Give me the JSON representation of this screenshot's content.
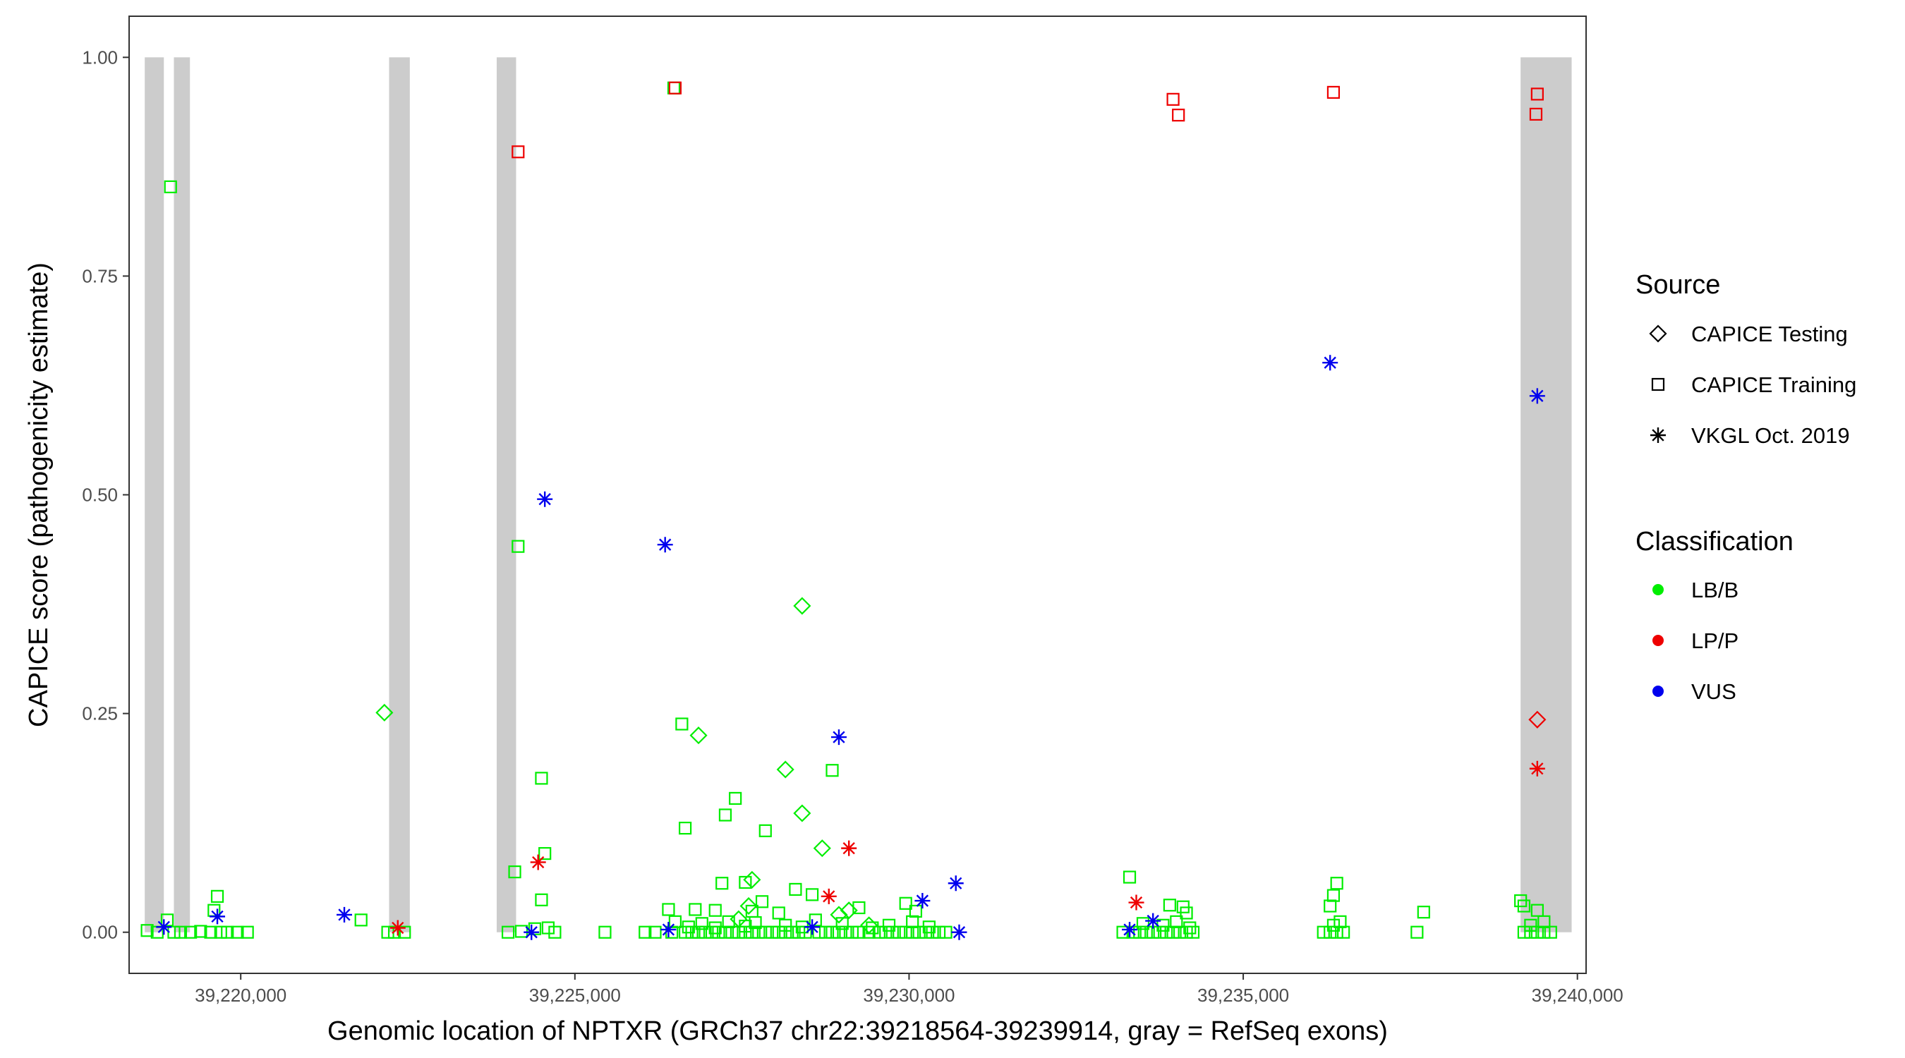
{
  "chart_data": {
    "type": "scatter",
    "xlabel": "Genomic location of NPTXR (GRCh37 chr22:39218564-39239914, gray = RefSeq exons)",
    "ylabel": "CAPICE score (pathogenicity estimate)",
    "xlim": [
      218330,
      240130
    ],
    "ylim": [
      -0.047,
      1.047
    ],
    "x_ticks": [
      220000,
      225000,
      230000,
      235000,
      240000
    ],
    "x_tick_labels": [
      "39,220,000",
      "39,225,000",
      "39,230,000",
      "39,235,000",
      "39,240,000"
    ],
    "y_ticks": [
      0,
      0.25,
      0.5,
      0.75,
      1.0
    ],
    "y_tick_labels": [
      "0.00",
      "0.25",
      "0.50",
      "0.75",
      "1.00"
    ],
    "grid": false,
    "x_value_offset": 39000000,
    "exons": [
      [
        218564,
        218850
      ],
      [
        219000,
        219240
      ],
      [
        222220,
        222530
      ],
      [
        223830,
        224120
      ],
      [
        239150,
        239914
      ]
    ],
    "colors": {
      "LB/B": "#00ee00",
      "LP/P": "#ee0000",
      "VUS": "#0000ee",
      "exon": "#cccccc",
      "frame": "#333333"
    },
    "legend": {
      "position": "right",
      "source_title": "Source",
      "source_items": [
        {
          "shape": "diamond",
          "label": "CAPICE Testing"
        },
        {
          "shape": "square",
          "label": "CAPICE Training"
        },
        {
          "shape": "asterisk",
          "label": "VKGL Oct. 2019"
        }
      ],
      "class_title": "Classification",
      "class_items": [
        {
          "cls": "LB/B",
          "label": "LB/B"
        },
        {
          "cls": "LP/P",
          "label": "LP/P"
        },
        {
          "cls": "VUS",
          "label": "VUS"
        }
      ]
    },
    "series": [
      {
        "source": "CAPICE Training",
        "classification": "LP/P",
        "points": [
          [
            226500,
            0.965
          ],
          [
            224150,
            0.892
          ],
          [
            233950,
            0.952
          ],
          [
            234030,
            0.934
          ],
          [
            236350,
            0.96
          ],
          [
            239400,
            0.958
          ],
          [
            239380,
            0.935
          ]
        ]
      },
      {
        "source": "CAPICE Testing",
        "classification": "LP/P",
        "points": [
          [
            239400,
            0.243
          ]
        ]
      },
      {
        "source": "VKGL Oct. 2019",
        "classification": "LP/P",
        "points": [
          [
            239400,
            0.187
          ],
          [
            224450,
            0.08
          ],
          [
            229100,
            0.096
          ],
          [
            228800,
            0.041
          ],
          [
            233400,
            0.034
          ],
          [
            222350,
            0.005
          ]
        ]
      },
      {
        "source": "VKGL Oct. 2019",
        "classification": "VUS",
        "points": [
          [
            236300,
            0.651
          ],
          [
            239400,
            0.613
          ],
          [
            224550,
            0.495
          ],
          [
            226350,
            0.443
          ],
          [
            228950,
            0.223
          ],
          [
            230700,
            0.056
          ],
          [
            230200,
            0.036
          ],
          [
            221550,
            0.02
          ],
          [
            219650,
            0.018
          ],
          [
            218850,
            0.006
          ],
          [
            224350,
            0.0
          ],
          [
            226400,
            0.003
          ],
          [
            228550,
            0.006
          ],
          [
            230750,
            0.0
          ],
          [
            233300,
            0.003
          ],
          [
            233650,
            0.013
          ]
        ]
      },
      {
        "source": "CAPICE Training",
        "classification": "LB/B",
        "points": [
          [
            226480,
            0.965
          ],
          [
            218950,
            0.852
          ],
          [
            224150,
            0.441
          ],
          [
            224500,
            0.176
          ],
          [
            226600,
            0.238
          ],
          [
            224550,
            0.09
          ],
          [
            224100,
            0.069
          ],
          [
            224500,
            0.037
          ],
          [
            228850,
            0.185
          ],
          [
            227400,
            0.153
          ],
          [
            227250,
            0.134
          ],
          [
            226650,
            0.119
          ],
          [
            227850,
            0.116
          ],
          [
            227550,
            0.057
          ],
          [
            227200,
            0.056
          ],
          [
            228300,
            0.049
          ],
          [
            228550,
            0.043
          ],
          [
            233300,
            0.063
          ],
          [
            236400,
            0.056
          ],
          [
            236350,
            0.042
          ],
          [
            236300,
            0.03
          ],
          [
            237700,
            0.023
          ],
          [
            239150,
            0.036
          ],
          [
            239200,
            0.03
          ],
          [
            239400,
            0.025
          ],
          [
            233900,
            0.031
          ],
          [
            234100,
            0.029
          ],
          [
            234150,
            0.022
          ],
          [
            219650,
            0.041
          ],
          [
            219600,
            0.025
          ],
          [
            221800,
            0.014
          ],
          [
            218900,
            0.014
          ],
          [
            229250,
            0.028
          ],
          [
            226400,
            0.026
          ],
          [
            226800,
            0.026
          ],
          [
            227100,
            0.025
          ],
          [
            227650,
            0.024
          ],
          [
            229950,
            0.033
          ],
          [
            230100,
            0.024
          ],
          [
            227800,
            0.035
          ],
          [
            228050,
            0.022
          ],
          [
            218600,
            0.002
          ],
          [
            218750,
            0.0
          ],
          [
            219000,
            0.0
          ],
          [
            219100,
            0.0
          ],
          [
            219250,
            0.0
          ],
          [
            219400,
            0.001
          ],
          [
            219550,
            0.0
          ],
          [
            219700,
            0.0
          ],
          [
            219800,
            0.0
          ],
          [
            219950,
            0.0
          ],
          [
            220100,
            0.0
          ],
          [
            222200,
            0.0
          ],
          [
            222300,
            0.0
          ],
          [
            222450,
            0.0
          ],
          [
            224000,
            0.0
          ],
          [
            224200,
            0.001
          ],
          [
            224400,
            0.004
          ],
          [
            224600,
            0.005
          ],
          [
            224700,
            0.0
          ],
          [
            225450,
            0.0
          ],
          [
            226050,
            0.0
          ],
          [
            226200,
            0.0
          ],
          [
            226450,
            0.0
          ],
          [
            226650,
            0.0
          ],
          [
            226750,
            0.0
          ],
          [
            226850,
            0.0
          ],
          [
            226950,
            0.0
          ],
          [
            227050,
            0.0
          ],
          [
            227150,
            0.0
          ],
          [
            227250,
            0.0
          ],
          [
            227350,
            0.0
          ],
          [
            227450,
            0.0
          ],
          [
            227550,
            0.0
          ],
          [
            227650,
            0.0
          ],
          [
            227750,
            0.0
          ],
          [
            227850,
            0.0
          ],
          [
            227950,
            0.0
          ],
          [
            228050,
            0.0
          ],
          [
            228150,
            0.0
          ],
          [
            228250,
            0.0
          ],
          [
            228350,
            0.0
          ],
          [
            228450,
            0.0
          ],
          [
            228650,
            0.0
          ],
          [
            228750,
            0.0
          ],
          [
            228850,
            0.0
          ],
          [
            228950,
            0.0
          ],
          [
            229050,
            0.0
          ],
          [
            229150,
            0.0
          ],
          [
            229250,
            0.0
          ],
          [
            229400,
            0.0
          ],
          [
            229550,
            0.0
          ],
          [
            229650,
            0.0
          ],
          [
            229750,
            0.0
          ],
          [
            229850,
            0.0
          ],
          [
            229950,
            0.0
          ],
          [
            230050,
            0.0
          ],
          [
            230150,
            0.0
          ],
          [
            230250,
            0.0
          ],
          [
            230350,
            0.0
          ],
          [
            230450,
            0.0
          ],
          [
            230550,
            0.0
          ],
          [
            226500,
            0.012
          ],
          [
            226900,
            0.01
          ],
          [
            227300,
            0.012
          ],
          [
            227700,
            0.011
          ],
          [
            228150,
            0.008
          ],
          [
            228600,
            0.014
          ],
          [
            229000,
            0.01
          ],
          [
            229700,
            0.008
          ],
          [
            230050,
            0.012
          ],
          [
            226700,
            0.006
          ],
          [
            227100,
            0.005
          ],
          [
            227550,
            0.007
          ],
          [
            228400,
            0.006
          ],
          [
            229450,
            0.005
          ],
          [
            230300,
            0.006
          ],
          [
            233200,
            0.0
          ],
          [
            233350,
            0.0
          ],
          [
            233450,
            0.0
          ],
          [
            233550,
            0.0
          ],
          [
            233650,
            0.0
          ],
          [
            233750,
            0.0
          ],
          [
            233850,
            0.0
          ],
          [
            233950,
            0.0
          ],
          [
            234050,
            0.0
          ],
          [
            234150,
            0.0
          ],
          [
            234250,
            0.0
          ],
          [
            233500,
            0.01
          ],
          [
            233800,
            0.008
          ],
          [
            234000,
            0.012
          ],
          [
            234200,
            0.005
          ],
          [
            236200,
            0.0
          ],
          [
            236300,
            0.0
          ],
          [
            236400,
            0.0
          ],
          [
            236500,
            0.0
          ],
          [
            236350,
            0.008
          ],
          [
            236450,
            0.012
          ],
          [
            237600,
            0.0
          ],
          [
            239200,
            0.0
          ],
          [
            239300,
            0.0
          ],
          [
            239400,
            0.0
          ],
          [
            239500,
            0.0
          ],
          [
            239600,
            0.0
          ],
          [
            239300,
            0.008
          ],
          [
            239500,
            0.012
          ]
        ]
      },
      {
        "source": "CAPICE Testing",
        "classification": "LB/B",
        "points": [
          [
            222150,
            0.251
          ],
          [
            228400,
            0.373
          ],
          [
            226850,
            0.225
          ],
          [
            228150,
            0.186
          ],
          [
            228400,
            0.136
          ],
          [
            228700,
            0.096
          ],
          [
            227650,
            0.06
          ],
          [
            227450,
            0.015
          ],
          [
            227600,
            0.03
          ],
          [
            229100,
            0.025
          ],
          [
            228950,
            0.02
          ],
          [
            229400,
            0.008
          ]
        ]
      }
    ]
  }
}
